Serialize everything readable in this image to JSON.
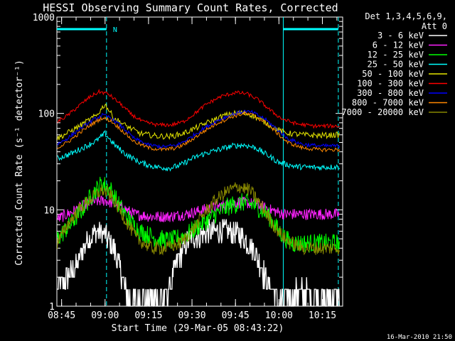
{
  "chart_data": {
    "type": "line",
    "title": "HESSI Observing Summary Count Rates, Corrected",
    "xlabel": "Start Time (29-Mar-05 08:43:22)",
    "ylabel": "Corrected Count Rate (s⁻¹ detector⁻¹)",
    "ylim": [
      1,
      1000
    ],
    "yscale": "log",
    "xlim_minutes": [
      523.37,
      622.0
    ],
    "y_ticks": [
      {
        "value": 1,
        "label": "1"
      },
      {
        "value": 10,
        "label": "10"
      },
      {
        "value": 100,
        "label": "100"
      },
      {
        "value": 1000,
        "label": "1000"
      }
    ],
    "x_ticks": [
      {
        "minutes": 525,
        "label": "08:45"
      },
      {
        "minutes": 540,
        "label": "09:00"
      },
      {
        "minutes": 555,
        "label": "09:15"
      },
      {
        "minutes": 570,
        "label": "09:30"
      },
      {
        "minutes": 585,
        "label": "09:45"
      },
      {
        "minutes": 600,
        "label": "10:00"
      },
      {
        "minutes": 615,
        "label": "10:15"
      }
    ],
    "legend_header": [
      "Det 1,3,4,5,6,9,",
      "Att 0"
    ],
    "legend_position": "right",
    "annotation": {
      "label": "N",
      "minutes": 540.5
    },
    "night_intervals_minutes": [
      [
        523.37,
        540.5
      ],
      [
        601.5,
        620.5
      ]
    ],
    "series": [
      {
        "name": "3 - 6 keV",
        "color": "#ffffff",
        "points": [
          [
            523.5,
            1.5
          ],
          [
            530,
            2.5
          ],
          [
            534,
            5.0
          ],
          [
            537,
            6.0
          ],
          [
            540,
            5.5
          ],
          [
            543,
            4.0
          ],
          [
            546,
            2.0
          ],
          [
            548,
            1.2
          ],
          [
            560,
            1.2
          ],
          [
            562,
            1.5
          ],
          [
            565,
            3.0
          ],
          [
            569,
            5.0
          ],
          [
            573,
            5.5
          ],
          [
            577,
            6.0
          ],
          [
            582,
            6.0
          ],
          [
            587,
            5.5
          ],
          [
            591,
            4.0
          ],
          [
            594,
            2.5
          ],
          [
            596,
            1.8
          ],
          [
            600,
            1.2
          ],
          [
            606,
            1.4
          ],
          [
            613,
            1.3
          ],
          [
            621,
            1.2
          ]
        ]
      },
      {
        "name": "6 - 12 keV",
        "color": "#ff22ff",
        "points": [
          [
            523.5,
            8.0
          ],
          [
            530,
            10.0
          ],
          [
            535,
            12.0
          ],
          [
            540,
            12.5
          ],
          [
            545,
            11.0
          ],
          [
            550,
            9.0
          ],
          [
            556,
            8.5
          ],
          [
            562,
            8.5
          ],
          [
            568,
            9.0
          ],
          [
            574,
            10.0
          ],
          [
            580,
            11.0
          ],
          [
            586,
            12.0
          ],
          [
            592,
            11.5
          ],
          [
            597,
            10.0
          ],
          [
            602,
            9.0
          ],
          [
            610,
            9.0
          ],
          [
            621,
            9.0
          ]
        ]
      },
      {
        "name": "12 - 25 keV",
        "color": "#00ff00",
        "points": [
          [
            523.5,
            5.0
          ],
          [
            528,
            7.0
          ],
          [
            532,
            10.0
          ],
          [
            536,
            15.0
          ],
          [
            539,
            19.0
          ],
          [
            542,
            16.0
          ],
          [
            545,
            11.0
          ],
          [
            548,
            8.0
          ],
          [
            552,
            6.0
          ],
          [
            558,
            5.0
          ],
          [
            563,
            4.8
          ],
          [
            568,
            5.5
          ],
          [
            573,
            7.0
          ],
          [
            578,
            9.0
          ],
          [
            583,
            11.0
          ],
          [
            588,
            12.0
          ],
          [
            592,
            11.0
          ],
          [
            596,
            9.0
          ],
          [
            600,
            6.0
          ],
          [
            604,
            4.5
          ],
          [
            610,
            4.5
          ],
          [
            621,
            4.5
          ]
        ]
      },
      {
        "name": "25 - 50 keV",
        "color": "#00ffff",
        "points": [
          [
            523.5,
            34.0
          ],
          [
            528,
            38.0
          ],
          [
            533,
            45.0
          ],
          [
            537,
            52.0
          ],
          [
            540,
            62.0
          ],
          [
            543,
            48.0
          ],
          [
            547,
            38.0
          ],
          [
            552,
            31.0
          ],
          [
            557,
            28.0
          ],
          [
            562,
            27.0
          ],
          [
            566,
            29.0
          ],
          [
            570,
            34.0
          ],
          [
            574,
            38.0
          ],
          [
            579,
            42.0
          ],
          [
            584,
            46.0
          ],
          [
            588,
            47.0
          ],
          [
            592,
            44.0
          ],
          [
            596,
            37.0
          ],
          [
            600,
            31.0
          ],
          [
            606,
            28.0
          ],
          [
            613,
            27.5
          ],
          [
            621,
            28.0
          ]
        ]
      },
      {
        "name": "50 - 100 keV",
        "color": "#e6e600",
        "points": [
          [
            523.5,
            55.0
          ],
          [
            528,
            65.0
          ],
          [
            533,
            80.0
          ],
          [
            537,
            95.0
          ],
          [
            540,
            125.0
          ],
          [
            543,
            90.0
          ],
          [
            547,
            75.0
          ],
          [
            552,
            62.0
          ],
          [
            558,
            58.0
          ],
          [
            563,
            58.0
          ],
          [
            567,
            62.0
          ],
          [
            571,
            70.0
          ],
          [
            576,
            82.0
          ],
          [
            581,
            95.0
          ],
          [
            586,
            102.0
          ],
          [
            590,
            98.0
          ],
          [
            594,
            85.0
          ],
          [
            598,
            72.0
          ],
          [
            602,
            63.0
          ],
          [
            608,
            60.0
          ],
          [
            614,
            59.0
          ],
          [
            621,
            60.0
          ]
        ]
      },
      {
        "name": "100 - 300 keV",
        "color": "#ff0000",
        "points": [
          [
            523.5,
            82.0
          ],
          [
            527,
            95.0
          ],
          [
            531,
            120.0
          ],
          [
            535,
            150.0
          ],
          [
            538,
            168.0
          ],
          [
            541,
            160.0
          ],
          [
            545,
            128.0
          ],
          [
            549,
            98.0
          ],
          [
            553,
            82.0
          ],
          [
            558,
            76.0
          ],
          [
            563,
            76.0
          ],
          [
            567,
            82.0
          ],
          [
            571,
            100.0
          ],
          [
            575,
            125.0
          ],
          [
            580,
            150.0
          ],
          [
            585,
            165.0
          ],
          [
            589,
            160.0
          ],
          [
            593,
            138.0
          ],
          [
            597,
            108.0
          ],
          [
            601,
            88.0
          ],
          [
            606,
            78.0
          ],
          [
            612,
            74.0
          ],
          [
            621,
            74.0
          ]
        ]
      },
      {
        "name": "300 - 800 keV",
        "color": "#0000ff",
        "points": [
          [
            523.5,
            48.0
          ],
          [
            527,
            55.0
          ],
          [
            531,
            68.0
          ],
          [
            535,
            82.0
          ],
          [
            539,
            96.0
          ],
          [
            542,
            90.0
          ],
          [
            546,
            72.0
          ],
          [
            550,
            55.0
          ],
          [
            555,
            47.0
          ],
          [
            560,
            45.0
          ],
          [
            565,
            47.0
          ],
          [
            569,
            55.0
          ],
          [
            574,
            70.0
          ],
          [
            579,
            85.0
          ],
          [
            584,
            98.0
          ],
          [
            588,
            105.0
          ],
          [
            591,
            102.0
          ],
          [
            595,
            88.0
          ],
          [
            599,
            70.0
          ],
          [
            603,
            55.0
          ],
          [
            608,
            48.0
          ],
          [
            614,
            46.0
          ],
          [
            621,
            46.0
          ]
        ]
      },
      {
        "name": "800 - 7000 keV",
        "color": "#ff8800",
        "points": [
          [
            523.5,
            44.0
          ],
          [
            527,
            50.0
          ],
          [
            531,
            62.0
          ],
          [
            535,
            76.0
          ],
          [
            539,
            90.0
          ],
          [
            542,
            84.0
          ],
          [
            546,
            66.0
          ],
          [
            550,
            51.0
          ],
          [
            555,
            44.0
          ],
          [
            560,
            42.0
          ],
          [
            565,
            44.0
          ],
          [
            569,
            51.0
          ],
          [
            574,
            65.0
          ],
          [
            579,
            80.0
          ],
          [
            584,
            93.0
          ],
          [
            588,
            100.0
          ],
          [
            591,
            96.0
          ],
          [
            595,
            82.0
          ],
          [
            599,
            64.0
          ],
          [
            603,
            50.0
          ],
          [
            608,
            44.0
          ],
          [
            614,
            42.0
          ],
          [
            621,
            42.0
          ]
        ]
      },
      {
        "name": "7000 - 20000 keV",
        "color": "#888800",
        "points": [
          [
            523.5,
            4.5
          ],
          [
            527,
            7.0
          ],
          [
            531,
            10.0
          ],
          [
            535,
            13.0
          ],
          [
            539,
            16.0
          ],
          [
            542,
            14.0
          ],
          [
            545,
            10.0
          ],
          [
            548,
            7.0
          ],
          [
            551,
            5.0
          ],
          [
            556,
            4.0
          ],
          [
            561,
            4.0
          ],
          [
            566,
            4.5
          ],
          [
            570,
            6.0
          ],
          [
            574,
            9.0
          ],
          [
            578,
            12.5
          ],
          [
            582,
            15.5
          ],
          [
            586,
            17.5
          ],
          [
            590,
            16.0
          ],
          [
            594,
            11.0
          ],
          [
            598,
            7.0
          ],
          [
            602,
            5.0
          ],
          [
            608,
            4.0
          ],
          [
            621,
            4.0
          ]
        ]
      }
    ]
  },
  "footer_timestamp": "16-Mar-2010 21:50"
}
